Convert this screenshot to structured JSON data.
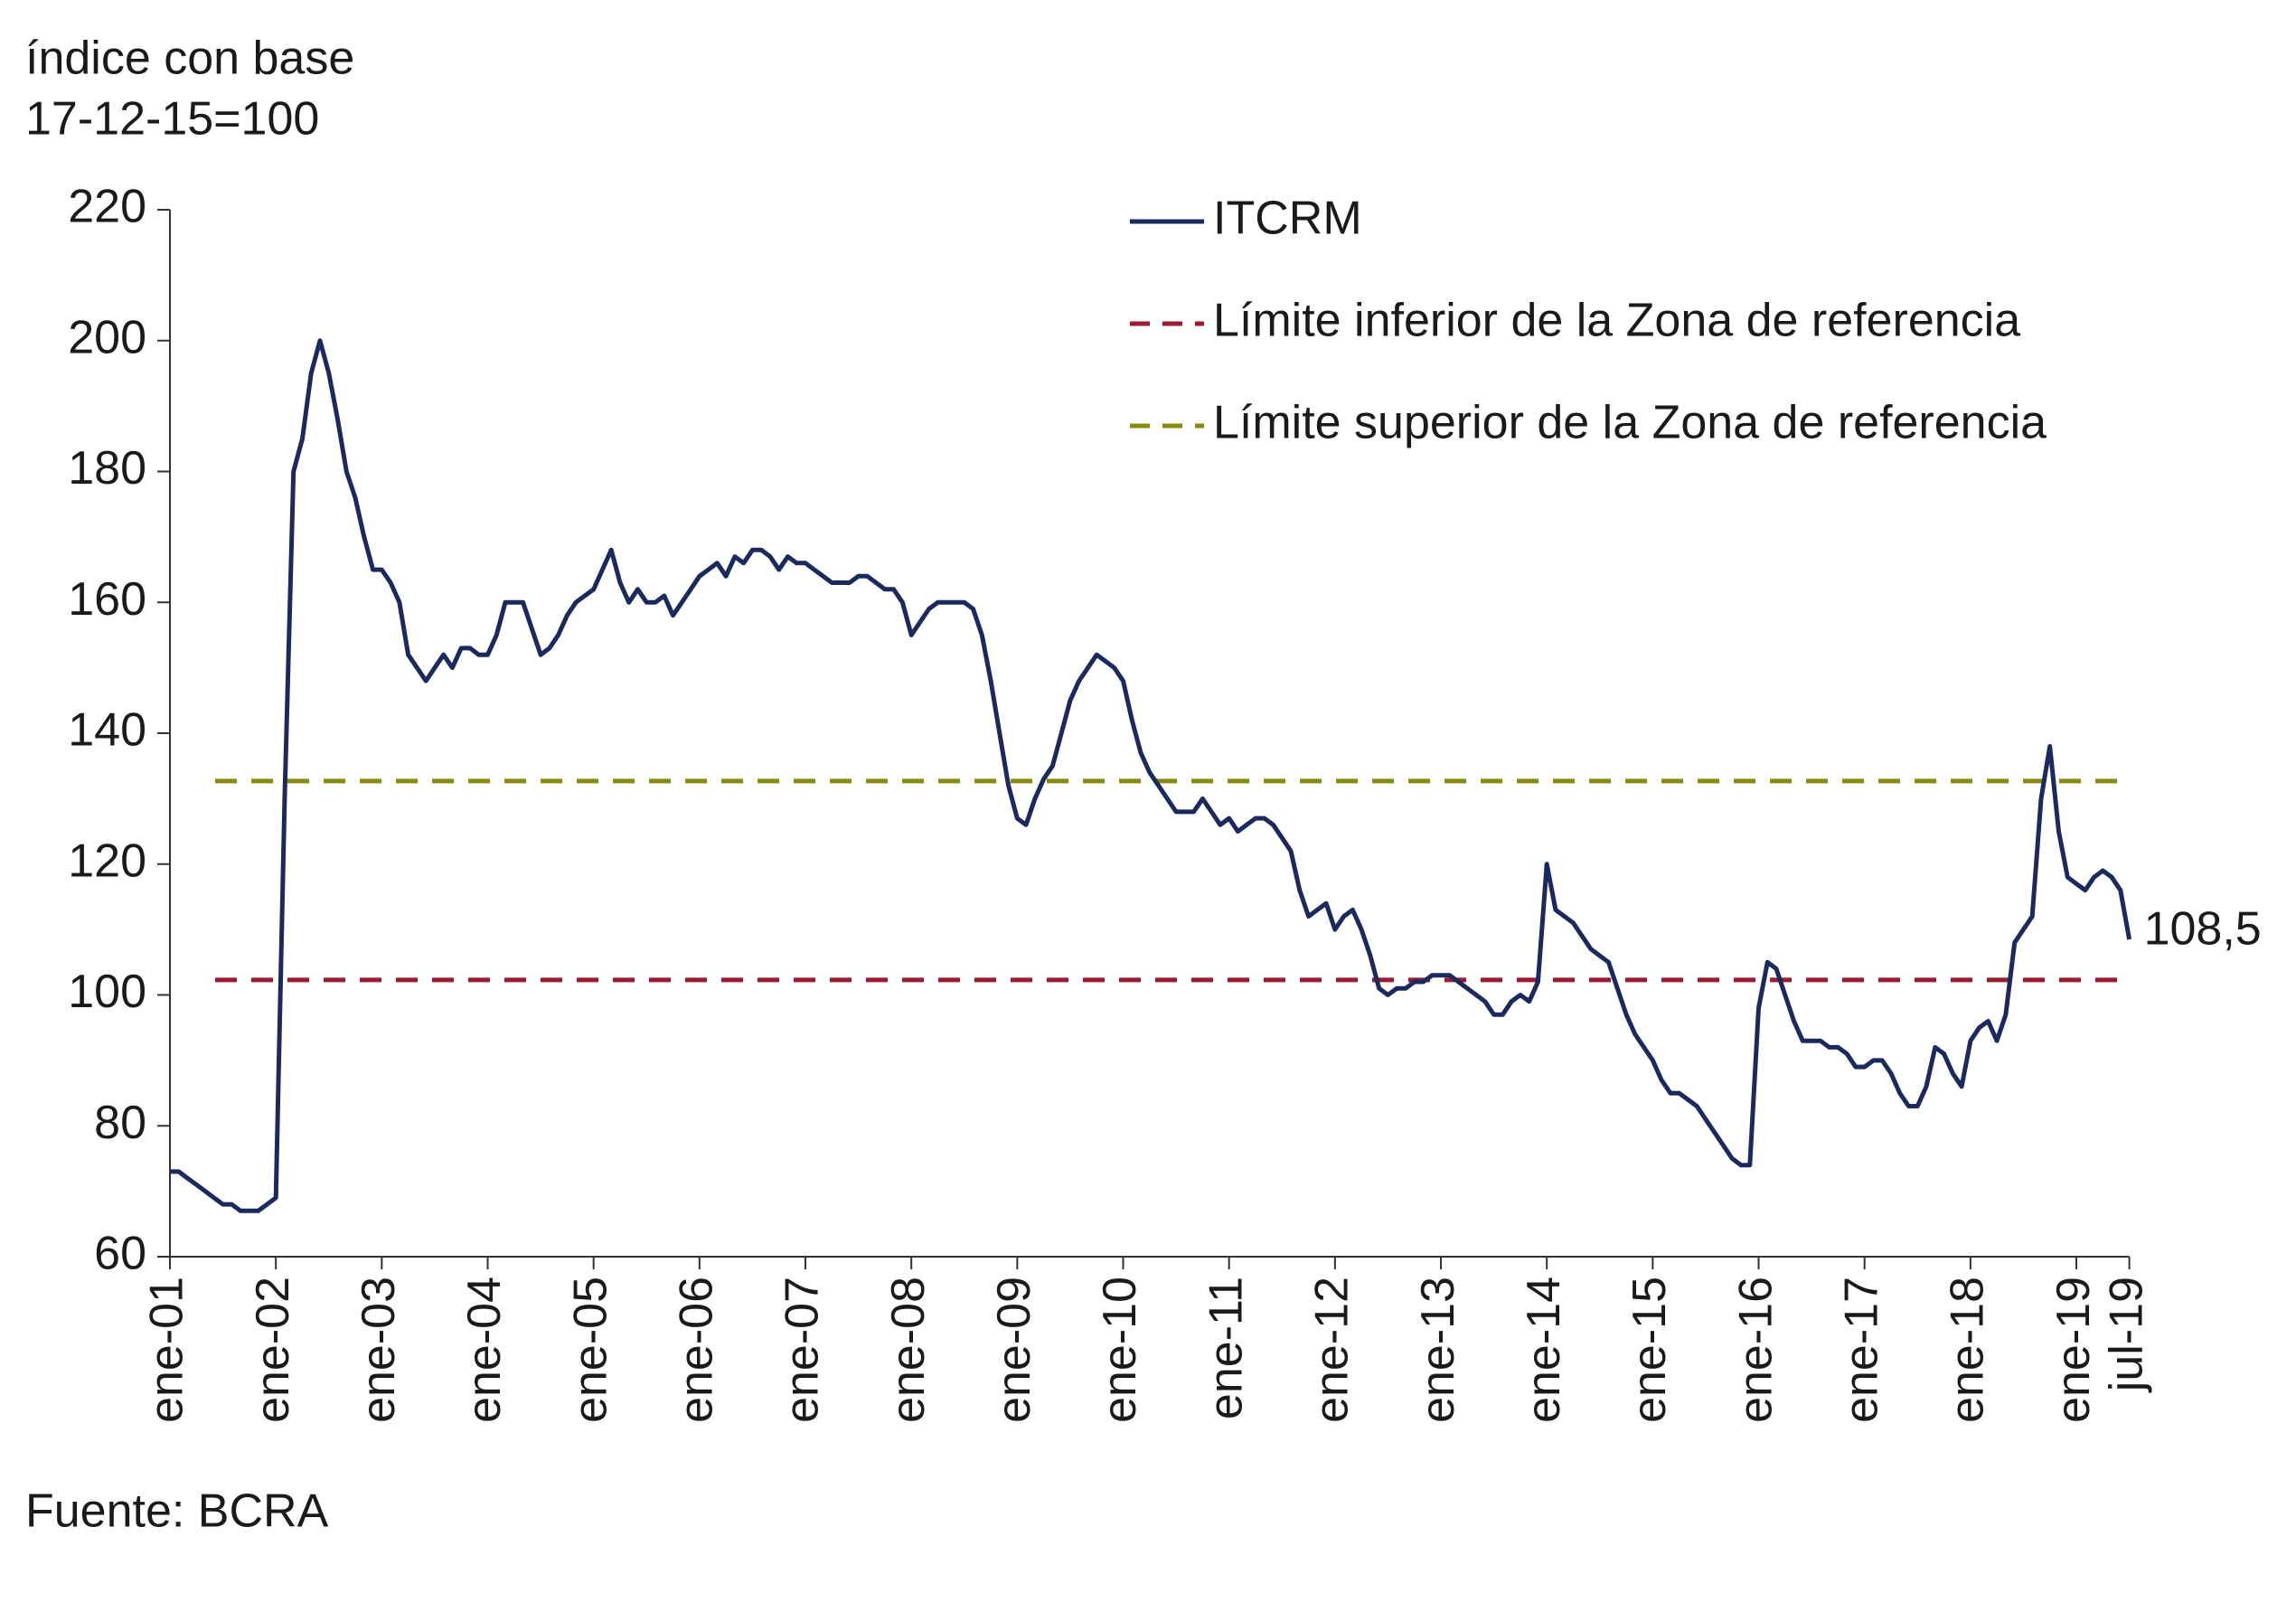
{
  "chart_data": {
    "type": "line",
    "title_lines": [
      "índice con base",
      "17-12-15=100"
    ],
    "source": "Fuente: BCRA",
    "categories": [
      "ene-01",
      null,
      null,
      null,
      null,
      null,
      null,
      null,
      null,
      null,
      null,
      null,
      "ene-02",
      null,
      null,
      null,
      null,
      null,
      null,
      null,
      null,
      null,
      null,
      null,
      "ene-03",
      null,
      null,
      null,
      null,
      null,
      null,
      null,
      null,
      null,
      null,
      null,
      "ene-04",
      null,
      null,
      null,
      null,
      null,
      null,
      null,
      null,
      null,
      null,
      null,
      "ene-05",
      null,
      null,
      null,
      null,
      null,
      null,
      null,
      null,
      null,
      null,
      null,
      "ene-06",
      null,
      null,
      null,
      null,
      null,
      null,
      null,
      null,
      null,
      null,
      null,
      "ene-07",
      null,
      null,
      null,
      null,
      null,
      null,
      null,
      null,
      null,
      null,
      null,
      "ene-08",
      null,
      null,
      null,
      null,
      null,
      null,
      null,
      null,
      null,
      null,
      null,
      "ene-09",
      null,
      null,
      null,
      null,
      null,
      null,
      null,
      null,
      null,
      null,
      null,
      "ene-10",
      null,
      null,
      null,
      null,
      null,
      null,
      null,
      null,
      null,
      null,
      null,
      "ene-11",
      null,
      null,
      null,
      null,
      null,
      null,
      null,
      null,
      null,
      null,
      null,
      "ene-12",
      null,
      null,
      null,
      null,
      null,
      null,
      null,
      null,
      null,
      null,
      null,
      "ene-13",
      null,
      null,
      null,
      null,
      null,
      null,
      null,
      null,
      null,
      null,
      null,
      "ene-14",
      null,
      null,
      null,
      null,
      null,
      null,
      null,
      null,
      null,
      null,
      null,
      "ene-15",
      null,
      null,
      null,
      null,
      null,
      null,
      null,
      null,
      null,
      null,
      null,
      "ene-16",
      null,
      null,
      null,
      null,
      null,
      null,
      null,
      null,
      null,
      null,
      null,
      "ene-17",
      null,
      null,
      null,
      null,
      null,
      null,
      null,
      null,
      null,
      null,
      null,
      "ene-18",
      null,
      null,
      null,
      null,
      null,
      null,
      null,
      null,
      null,
      null,
      null,
      "ene-19",
      null,
      null,
      null,
      null,
      null,
      "jul-19"
    ],
    "series": [
      {
        "name": "ITCRM",
        "color": "#1b2a5e",
        "values": [
          73,
          73,
          72,
          71,
          70,
          69,
          68,
          68,
          67,
          67,
          67,
          68,
          69,
          130,
          180,
          185,
          195,
          200,
          195,
          188,
          180,
          176,
          170,
          165,
          165,
          163,
          160,
          152,
          150,
          148,
          150,
          152,
          150,
          153,
          153,
          152,
          152,
          155,
          160,
          160,
          160,
          156,
          152,
          153,
          155,
          158,
          160,
          161,
          162,
          165,
          168,
          163,
          160,
          162,
          160,
          160,
          161,
          158,
          160,
          162,
          164,
          165,
          166,
          164,
          167,
          166,
          168,
          168,
          167,
          165,
          167,
          166,
          166,
          165,
          164,
          163,
          163,
          163,
          164,
          164,
          163,
          162,
          162,
          160,
          155,
          157,
          159,
          160,
          160,
          160,
          160,
          159,
          155,
          148,
          140,
          132,
          127,
          126,
          130,
          133,
          135,
          140,
          145,
          148,
          150,
          152,
          151,
          150,
          148,
          142,
          137,
          134,
          132,
          130,
          128,
          128,
          128,
          130,
          128,
          126,
          127,
          125,
          126,
          127,
          127,
          126,
          124,
          122,
          116,
          112,
          113,
          114,
          110,
          112,
          113,
          110,
          106,
          101,
          100,
          101,
          101,
          102,
          102,
          103,
          103,
          103,
          102,
          101,
          100,
          99,
          97,
          97,
          99,
          100,
          99,
          102,
          120,
          113,
          112,
          111,
          109,
          107,
          106,
          105,
          101,
          97,
          94,
          92,
          90,
          87,
          85,
          85,
          84,
          83,
          81,
          79,
          77,
          75,
          74,
          74,
          98,
          105,
          104,
          100,
          96,
          93,
          93,
          93,
          92,
          92,
          91,
          89,
          89,
          90,
          90,
          88,
          85,
          83,
          83,
          86,
          92,
          91,
          88,
          86,
          93,
          95,
          96,
          93,
          97,
          108,
          110,
          112,
          130,
          138,
          125,
          118,
          117,
          116,
          118,
          119,
          118,
          116,
          108.5
        ]
      }
    ],
    "end_label": {
      "value": 108.5,
      "label": "108,5"
    },
    "reference_lines": [
      {
        "name": "Límite inferior de la Zona de referencia",
        "color": "#9b1b30",
        "value": 102.3
      },
      {
        "name": "Límite superior de la Zona de referencia",
        "color": "#8a8a12",
        "value": 132.7
      }
    ],
    "ylim": [
      60,
      220
    ],
    "yticks": [
      60,
      80,
      100,
      120,
      140,
      160,
      180,
      200,
      220
    ]
  }
}
